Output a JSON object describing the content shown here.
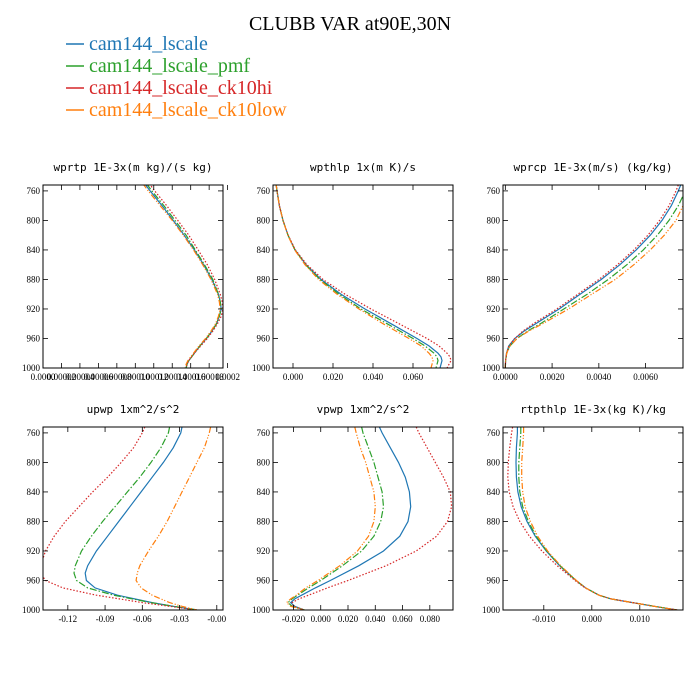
{
  "figure": {
    "title": "CLUBB VAR at90E,30N",
    "legend": [
      {
        "label": "cam144_lscale",
        "color": "#1f77b4",
        "dash": "solid"
      },
      {
        "label": "cam144_lscale_pmf",
        "color": "#2ca02c",
        "dash": "dashdot"
      },
      {
        "label": "cam144_lscale_ck10hi",
        "color": "#d62728",
        "dash": "dotted"
      },
      {
        "label": "cam144_lscale_ck10low",
        "color": "#ff7f0e",
        "dash": "dashdotdot"
      }
    ]
  },
  "chart_data": [
    {
      "type": "line",
      "title": "wprtp  1E-3x(m kg)/(s kg)",
      "xlim": [
        0,
        0.000195
      ],
      "ylim": [
        1000,
        752
      ],
      "yticks": [
        760,
        800,
        840,
        880,
        920,
        960,
        1000
      ],
      "xticks": [
        0,
        2e-05,
        4e-05,
        6e-05,
        8e-05,
        0.0001,
        0.00012,
        0.00014,
        0.00016,
        0.00018,
        0.0002
      ],
      "xtick_labels": [
        "0.0000",
        "0.00002",
        "0.00004",
        "0.00006",
        "0.00008",
        "0.00010",
        "0.00012",
        "0.00014",
        "0.00016",
        "0.00018",
        "0.0002"
      ],
      "y": [
        750,
        760,
        780,
        800,
        820,
        840,
        860,
        880,
        900,
        910,
        920,
        930,
        940,
        950,
        960,
        970,
        980,
        990,
        995,
        1000
      ],
      "series": [
        {
          "x": [
            0.00011,
            0.000116,
            0.000129,
            0.000141,
            0.000153,
            0.000164,
            0.000174,
            0.000183,
            0.00019,
            0.000192,
            0.000193,
            0.000191,
            0.000188,
            0.000183,
            0.000177,
            0.00017,
            0.000164,
            0.000158,
            0.000156,
            0.000155
          ]
        },
        {
          "x": [
            0.000112,
            0.000118,
            0.000131,
            0.000143,
            0.000155,
            0.000165,
            0.000175,
            0.000184,
            0.00019,
            0.000192,
            0.000193,
            0.000191,
            0.000188,
            0.000183,
            0.000177,
            0.00017,
            0.000164,
            0.000158,
            0.000156,
            0.000155
          ]
        },
        {
          "x": [
            0.000115,
            0.000121,
            0.000134,
            0.000146,
            0.000158,
            0.000168,
            0.000178,
            0.000186,
            0.000192,
            0.000194,
            0.000195,
            0.000193,
            0.000189,
            0.000184,
            0.000178,
            0.000171,
            0.000164,
            0.000158,
            0.000156,
            0.000155
          ]
        },
        {
          "x": [
            0.000108,
            0.000114,
            0.000127,
            0.00014,
            0.000152,
            0.000163,
            0.000173,
            0.000182,
            0.000189,
            0.000191,
            0.000192,
            0.00019,
            0.000187,
            0.000182,
            0.000176,
            0.000169,
            0.000163,
            0.000157,
            0.000155,
            0.000154
          ]
        }
      ]
    },
    {
      "type": "line",
      "title": "wpthlp  1x(m K)/s",
      "xlim": [
        -0.01,
        0.08
      ],
      "ylim": [
        1000,
        752
      ],
      "yticks": [
        760,
        800,
        840,
        880,
        920,
        960,
        1000
      ],
      "xticks": [
        0,
        0.02,
        0.04,
        0.06
      ],
      "xtick_labels": [
        "0.000",
        "0.020",
        "0.040",
        "0.060"
      ],
      "y": [
        750,
        760,
        780,
        800,
        820,
        840,
        860,
        880,
        900,
        920,
        940,
        960,
        970,
        980,
        985,
        990,
        995,
        1000
      ],
      "series": [
        {
          "x": [
            -0.0085,
            -0.008,
            -0.0068,
            -0.005,
            -0.0025,
            0.001,
            0.0065,
            0.014,
            0.024,
            0.036,
            0.049,
            0.062,
            0.068,
            0.0725,
            0.074,
            0.0745,
            0.074,
            0.0735
          ]
        },
        {
          "x": [
            -0.0085,
            -0.008,
            -0.0068,
            -0.005,
            -0.0025,
            0.001,
            0.0063,
            0.0135,
            0.023,
            0.034,
            0.047,
            0.06,
            0.066,
            0.0705,
            0.072,
            0.0725,
            0.072,
            0.0715
          ]
        },
        {
          "x": [
            -0.0085,
            -0.008,
            -0.0068,
            -0.005,
            -0.0024,
            0.0012,
            0.007,
            0.015,
            0.026,
            0.039,
            0.053,
            0.067,
            0.073,
            0.077,
            0.0785,
            0.079,
            0.078,
            0.077
          ]
        },
        {
          "x": [
            -0.0085,
            -0.008,
            -0.0068,
            -0.005,
            -0.0026,
            0.0008,
            0.006,
            0.0128,
            0.022,
            0.033,
            0.045,
            0.058,
            0.064,
            0.068,
            0.0695,
            0.07,
            0.0695,
            0.069
          ]
        }
      ]
    },
    {
      "type": "line",
      "title": "wprcp  1E-3x(m/s) (kg/kg)",
      "xlim": [
        -0.0001,
        0.0076
      ],
      "ylim": [
        1000,
        752
      ],
      "yticks": [
        760,
        800,
        840,
        880,
        920,
        960,
        1000
      ],
      "xticks": [
        0,
        0.002,
        0.004,
        0.006
      ],
      "xtick_labels": [
        "0.0000",
        "0.0020",
        "0.0040",
        "0.0060"
      ],
      "y": [
        752,
        760,
        780,
        800,
        820,
        840,
        860,
        880,
        900,
        920,
        940,
        950,
        960,
        970,
        980,
        990,
        1000
      ],
      "series": [
        {
          "x": [
            0.0075,
            0.0074,
            0.0071,
            0.0067,
            0.0062,
            0.0056,
            0.0049,
            0.0041,
            0.0032,
            0.0023,
            0.0013,
            0.0008,
            0.0004,
            0.00015,
            5e-05,
            1e-05,
            0.0
          ]
        },
        {
          "x": [
            0.0077,
            0.0077,
            0.0074,
            0.007,
            0.0065,
            0.0059,
            0.0052,
            0.0044,
            0.0035,
            0.0025,
            0.0015,
            0.00095,
            0.0005,
            0.0002,
            6e-05,
            1e-05,
            0.0
          ]
        },
        {
          "x": [
            0.0074,
            0.0073,
            0.007,
            0.0066,
            0.0061,
            0.0055,
            0.0048,
            0.004,
            0.0031,
            0.0022,
            0.0012,
            0.00075,
            0.0004,
            0.00015,
            5e-05,
            1e-05,
            0.0
          ]
        },
        {
          "x": [
            0.0078,
            0.0078,
            0.0076,
            0.0073,
            0.0068,
            0.0062,
            0.0055,
            0.0047,
            0.0037,
            0.0027,
            0.0016,
            0.001,
            0.0005,
            0.0002,
            6e-05,
            1e-05,
            0.0
          ]
        }
      ]
    },
    {
      "type": "line",
      "title": "upwp  1xm^2/s^2",
      "xlim": [
        -0.14,
        0.005
      ],
      "ylim": [
        1000,
        752
      ],
      "yticks": [
        760,
        800,
        840,
        880,
        920,
        960,
        1000
      ],
      "xticks": [
        -0.12,
        -0.09,
        -0.06,
        -0.03,
        0
      ],
      "xtick_labels": [
        "-0.12",
        "-0.09",
        "-0.06",
        "-0.03",
        "-0.00"
      ],
      "y": [
        752,
        760,
        780,
        800,
        820,
        840,
        860,
        880,
        900,
        920,
        940,
        950,
        960,
        970,
        980,
        990,
        995,
        1000
      ],
      "series": [
        {
          "x": [
            -0.028,
            -0.029,
            -0.035,
            -0.043,
            -0.052,
            -0.061,
            -0.07,
            -0.079,
            -0.088,
            -0.097,
            -0.104,
            -0.106,
            -0.105,
            -0.098,
            -0.08,
            -0.052,
            -0.035,
            -0.016
          ]
        },
        {
          "x": [
            -0.038,
            -0.039,
            -0.045,
            -0.053,
            -0.062,
            -0.072,
            -0.082,
            -0.092,
            -0.101,
            -0.109,
            -0.114,
            -0.115,
            -0.113,
            -0.104,
            -0.083,
            -0.053,
            -0.035,
            -0.016
          ]
        },
        {
          "x": [
            -0.058,
            -0.06,
            -0.067,
            -0.077,
            -0.088,
            -0.1,
            -0.111,
            -0.122,
            -0.131,
            -0.138,
            -0.142,
            -0.142,
            -0.138,
            -0.124,
            -0.097,
            -0.06,
            -0.038,
            -0.016
          ]
        },
        {
          "x": [
            -0.005,
            -0.006,
            -0.01,
            -0.016,
            -0.022,
            -0.028,
            -0.034,
            -0.04,
            -0.047,
            -0.055,
            -0.062,
            -0.064,
            -0.065,
            -0.061,
            -0.052,
            -0.038,
            -0.028,
            -0.016
          ]
        }
      ]
    },
    {
      "type": "line",
      "title": "vpwp  1xm^2/s^2",
      "xlim": [
        -0.035,
        0.097
      ],
      "ylim": [
        1000,
        752
      ],
      "yticks": [
        760,
        800,
        840,
        880,
        920,
        960,
        1000
      ],
      "xticks": [
        -0.02,
        0,
        0.02,
        0.04,
        0.06,
        0.08
      ],
      "xtick_labels": [
        "-0.020",
        "0.000",
        "0.020",
        "0.040",
        "0.060",
        "0.080"
      ],
      "y": [
        752,
        760,
        780,
        800,
        820,
        840,
        860,
        880,
        900,
        920,
        940,
        960,
        970,
        980,
        985,
        990,
        995,
        1000
      ],
      "series": [
        {
          "x": [
            0.043,
            0.045,
            0.051,
            0.057,
            0.062,
            0.065,
            0.066,
            0.064,
            0.058,
            0.046,
            0.028,
            0.007,
            -0.004,
            -0.014,
            -0.019,
            -0.022,
            -0.019,
            -0.012
          ]
        },
        {
          "x": [
            0.03,
            0.031,
            0.035,
            0.039,
            0.042,
            0.045,
            0.046,
            0.044,
            0.039,
            0.03,
            0.016,
            0.0,
            -0.009,
            -0.017,
            -0.021,
            -0.024,
            -0.021,
            -0.012
          ]
        },
        {
          "x": [
            0.07,
            0.072,
            0.078,
            0.084,
            0.09,
            0.095,
            0.096,
            0.093,
            0.085,
            0.07,
            0.048,
            0.02,
            0.005,
            -0.009,
            -0.016,
            -0.021,
            -0.02,
            -0.012
          ]
        },
        {
          "x": [
            0.025,
            0.026,
            0.029,
            0.033,
            0.036,
            0.039,
            0.04,
            0.039,
            0.035,
            0.027,
            0.014,
            -0.002,
            -0.011,
            -0.018,
            -0.022,
            -0.025,
            -0.022,
            -0.012
          ]
        }
      ]
    },
    {
      "type": "line",
      "title": "rtpthlp  1E-3x(kg K)/kg",
      "xlim": [
        -0.0185,
        0.019
      ],
      "ylim": [
        1000,
        752
      ],
      "yticks": [
        760,
        800,
        840,
        880,
        920,
        960,
        1000
      ],
      "xticks": [
        -0.01,
        0,
        0.01
      ],
      "xtick_labels": [
        "-0.010",
        "0.000",
        "0.010"
      ],
      "y": [
        752,
        760,
        780,
        800,
        820,
        840,
        860,
        880,
        900,
        920,
        940,
        960,
        970,
        980,
        985,
        990,
        995,
        1000
      ],
      "series": [
        {
          "x": [
            -0.0155,
            -0.0155,
            -0.0157,
            -0.0158,
            -0.0157,
            -0.0154,
            -0.0147,
            -0.0135,
            -0.0118,
            -0.0095,
            -0.0067,
            -0.0033,
            -0.0013,
            0.0015,
            0.004,
            0.0085,
            0.013,
            0.0178
          ]
        },
        {
          "x": [
            -0.0148,
            -0.0148,
            -0.015,
            -0.0152,
            -0.0152,
            -0.015,
            -0.0144,
            -0.0132,
            -0.0116,
            -0.0094,
            -0.0066,
            -0.0033,
            -0.0013,
            0.0015,
            0.004,
            0.0085,
            0.013,
            0.0178
          ]
        },
        {
          "x": [
            -0.0165,
            -0.0167,
            -0.0171,
            -0.0174,
            -0.0175,
            -0.0172,
            -0.0164,
            -0.015,
            -0.013,
            -0.0104,
            -0.0072,
            -0.0035,
            -0.0014,
            0.0015,
            0.004,
            0.0085,
            0.013,
            0.0178
          ]
        },
        {
          "x": [
            -0.0142,
            -0.0142,
            -0.0144,
            -0.0146,
            -0.0146,
            -0.0144,
            -0.0139,
            -0.0128,
            -0.0113,
            -0.0092,
            -0.0065,
            -0.0032,
            -0.0013,
            0.0015,
            0.004,
            0.0085,
            0.013,
            0.0178
          ]
        }
      ]
    }
  ]
}
